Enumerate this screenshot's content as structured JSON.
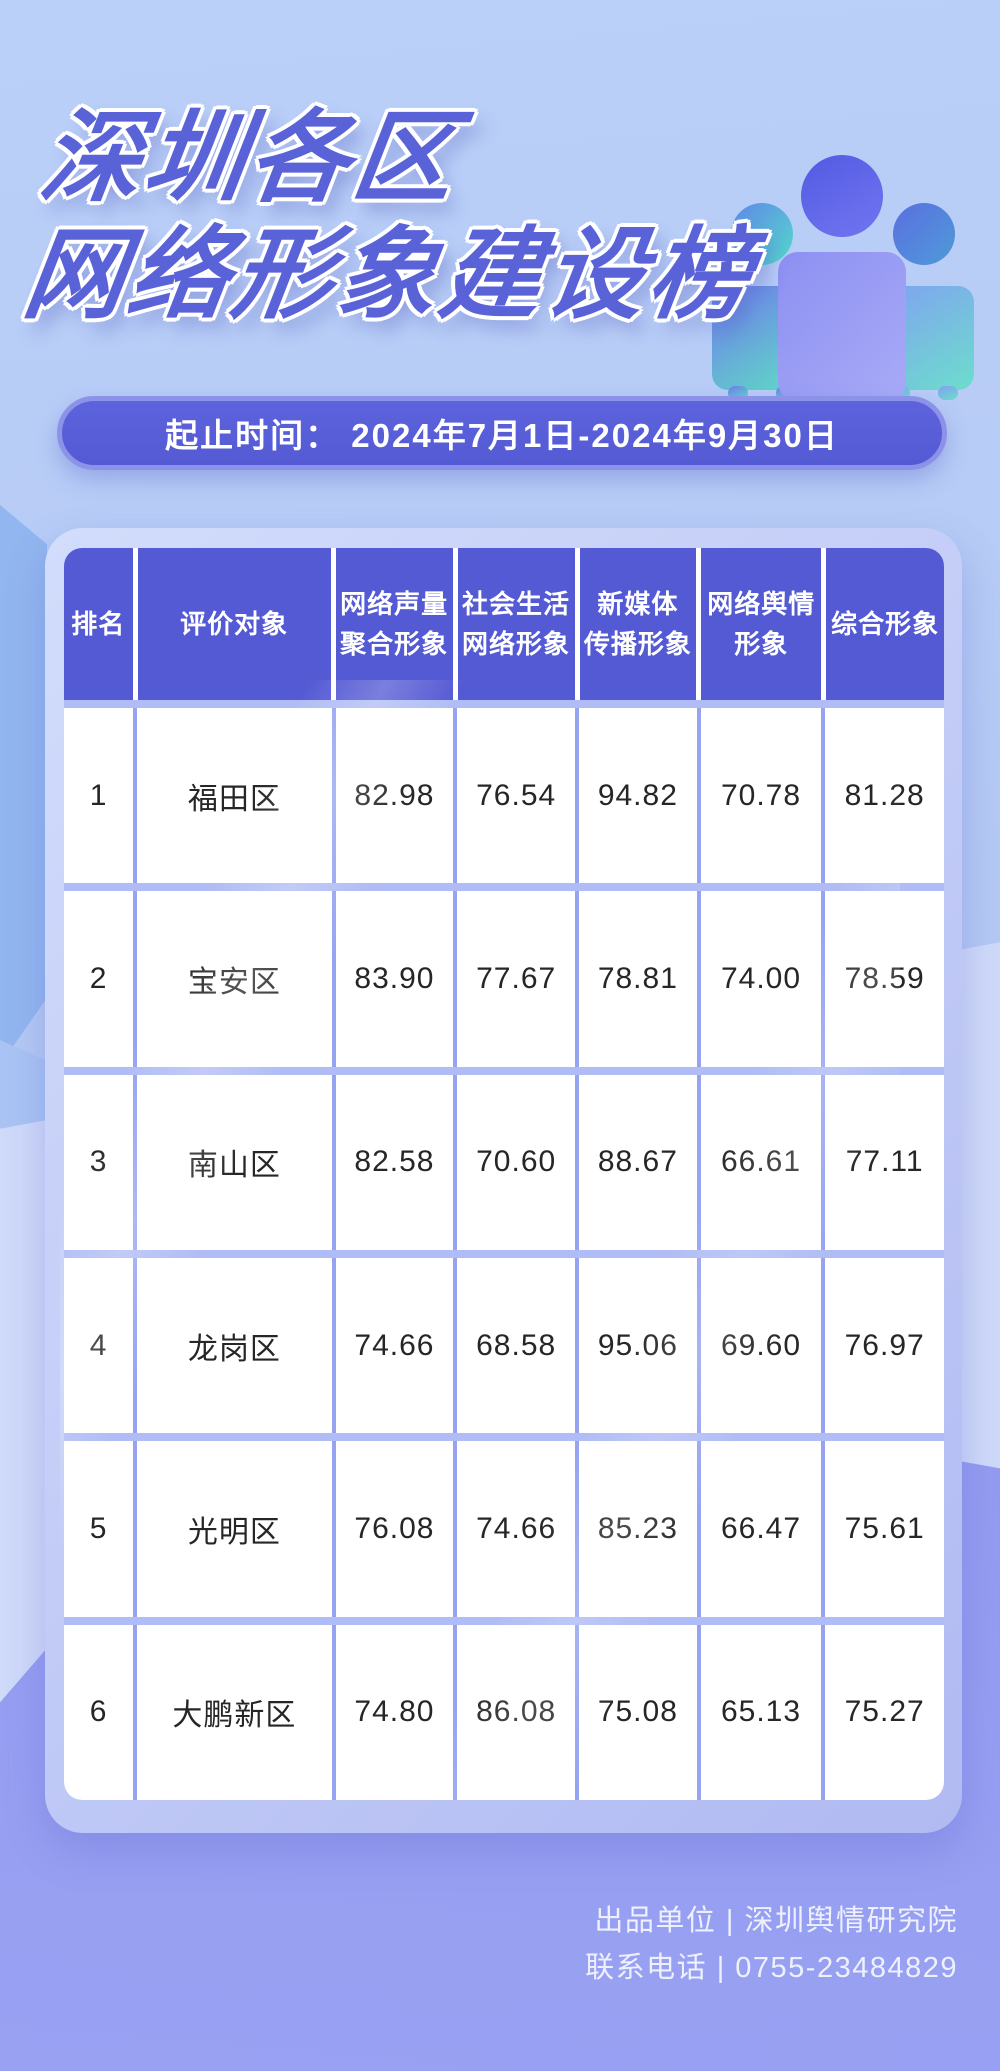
{
  "page": {
    "title_line1": "深圳各区",
    "title_line2": "网络形象建设榜"
  },
  "banner": {
    "text": "起止时间： 2024年7月1日-2024年9月30日"
  },
  "icon": {
    "label": "people-group-icon"
  },
  "table": {
    "columns": [
      [
        "排名"
      ],
      [
        "评价对象"
      ],
      [
        "网络声量",
        "聚合形象"
      ],
      [
        "社会生活",
        "网络形象"
      ],
      [
        "新媒体",
        "传播形象"
      ],
      [
        "网络舆情",
        "形象"
      ],
      [
        "综合形象"
      ]
    ],
    "rows": [
      [
        "1",
        "福田区",
        "82.98",
        "76.54",
        "94.82",
        "70.78",
        "81.28"
      ],
      [
        "2",
        "宝安区",
        "83.90",
        "77.67",
        "78.81",
        "74.00",
        "78.59"
      ],
      [
        "3",
        "南山区",
        "82.58",
        "70.60",
        "88.67",
        "66.61",
        "77.11"
      ],
      [
        "4",
        "龙岗区",
        "74.66",
        "68.58",
        "95.06",
        "69.60",
        "76.97"
      ],
      [
        "5",
        "光明区",
        "76.08",
        "74.66",
        "85.23",
        "66.47",
        "75.61"
      ],
      [
        "6",
        "大鹏新区",
        "74.80",
        "86.08",
        "75.08",
        "65.13",
        "75.27"
      ]
    ]
  },
  "chart_data": {
    "type": "table",
    "title": "深圳各区网络形象建设榜",
    "period": "2024年7月1日-2024年9月30日",
    "columns": [
      "排名",
      "评价对象",
      "网络声量聚合形象",
      "社会生活网络形象",
      "新媒体传播形象",
      "网络舆情形象",
      "综合形象"
    ],
    "rows": [
      [
        1,
        "福田区",
        82.98,
        76.54,
        94.82,
        70.78,
        81.28
      ],
      [
        2,
        "宝安区",
        83.9,
        77.67,
        78.81,
        74.0,
        78.59
      ],
      [
        3,
        "南山区",
        82.58,
        70.6,
        88.67,
        66.61,
        77.11
      ],
      [
        4,
        "龙岗区",
        74.66,
        68.58,
        95.06,
        69.6,
        76.97
      ],
      [
        5,
        "光明区",
        76.08,
        74.66,
        85.23,
        66.47,
        75.61
      ],
      [
        6,
        "大鹏新区",
        74.8,
        86.08,
        75.08,
        65.13,
        75.27
      ]
    ]
  },
  "footer": {
    "line1": "出品单位 | 深圳舆情研究院",
    "line2": "联系电话 | 0755-23484829"
  },
  "colors": {
    "header_purple": "#5459d4",
    "banner_purple": "#575dd6",
    "title_purple": "#5a62d8",
    "panel_lavender": "#c3cdf7",
    "bottom_purple": "#8a92ec",
    "background_blue": "#b7cdf6"
  }
}
